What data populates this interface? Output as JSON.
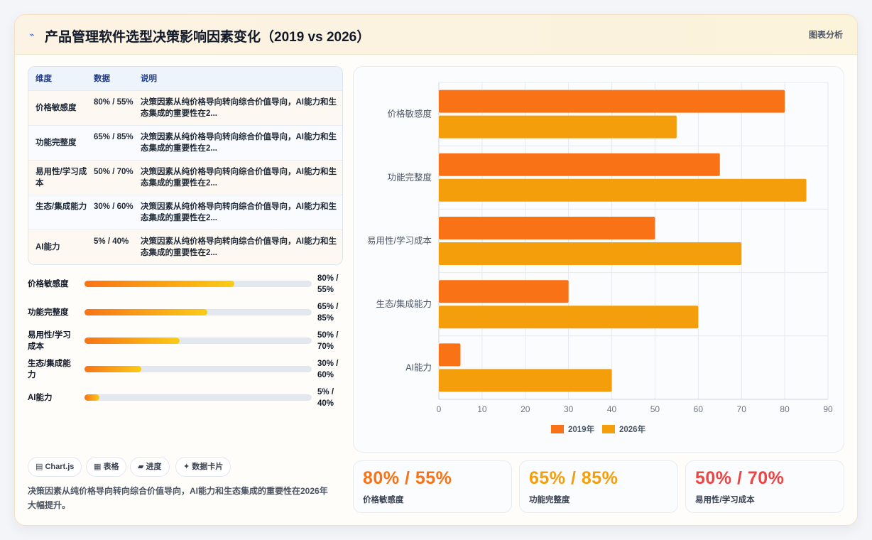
{
  "header": {
    "icon": "chart-spark-icon",
    "title": "产品管理软件选型决策影响因素变化（2019 vs 2026）",
    "action_label": "图表分析"
  },
  "table": {
    "columns": [
      "维度",
      "数据",
      "说明"
    ],
    "rows": [
      {
        "dimension": "价格敏感度",
        "data": "80% / 55%",
        "note": "决策因素从纯价格导向转向综合价值导向，AI能力和生态集成的重要性在2..."
      },
      {
        "dimension": "功能完整度",
        "data": "65% / 85%",
        "note": "决策因素从纯价格导向转向综合价值导向，AI能力和生态集成的重要性在2..."
      },
      {
        "dimension": "易用性/学习成本",
        "data": "50% / 70%",
        "note": "决策因素从纯价格导向转向综合价值导向，AI能力和生态集成的重要性在2..."
      },
      {
        "dimension": "生态/集成能力",
        "data": "30% / 60%",
        "note": "决策因素从纯价格导向转向综合价值导向，AI能力和生态集成的重要性在2..."
      },
      {
        "dimension": "AI能力",
        "data": "5% / 40%",
        "note": "决策因素从纯价格导向转向综合价值导向，AI能力和生态集成的重要性在2..."
      }
    ]
  },
  "progress": [
    {
      "label": "价格敏感度",
      "value_text": "80% / 55%",
      "fill": 0.66
    },
    {
      "label": "功能完整度",
      "value_text": "65% / 85%",
      "fill": 0.54
    },
    {
      "label": "易用性/学习成本",
      "value_text": "50% / 70%",
      "fill": 0.42
    },
    {
      "label": "生态/集成能力",
      "value_text": "30% / 60%",
      "fill": 0.25
    },
    {
      "label": "AI能力",
      "value_text": "5% / 40%",
      "fill": 0.065
    }
  ],
  "tags": [
    {
      "icon": "chart-icon",
      "label": "▤ Chart.js"
    },
    {
      "icon": "table-icon",
      "label": "▦ 表格"
    },
    {
      "icon": "progress-icon",
      "label": "▰ 进度"
    },
    {
      "icon": "spark-icon",
      "label": "✦ 数据卡片"
    }
  ],
  "summary": "决策因素从纯价格导向转向综合价值导向，AI能力和生态集成的重要性在2026年大幅提升。",
  "stats": [
    {
      "value": "80% / 55%",
      "label": "价格敏感度",
      "color": "#f97316"
    },
    {
      "value": "65% / 85%",
      "label": "功能完整度",
      "color": "#f59e0b"
    },
    {
      "value": "50% / 70%",
      "label": "易用性/学习成本",
      "color": "#ef4444"
    }
  ],
  "chart_data": {
    "type": "bar",
    "orientation": "horizontal",
    "categories": [
      "价格敏感度",
      "功能完整度",
      "易用性/学习成本",
      "生态/集成能力",
      "AI能力"
    ],
    "series": [
      {
        "name": "2019年",
        "values": [
          80,
          65,
          50,
          30,
          5
        ],
        "color": "#f97316"
      },
      {
        "name": "2026年",
        "values": [
          55,
          85,
          70,
          60,
          40
        ],
        "color": "#f59e0b"
      }
    ],
    "xlim": [
      0,
      90
    ],
    "xticks": [
      0,
      10,
      20,
      30,
      40,
      50,
      60,
      70,
      80,
      90
    ],
    "grid": true,
    "legend_position": "bottom"
  }
}
